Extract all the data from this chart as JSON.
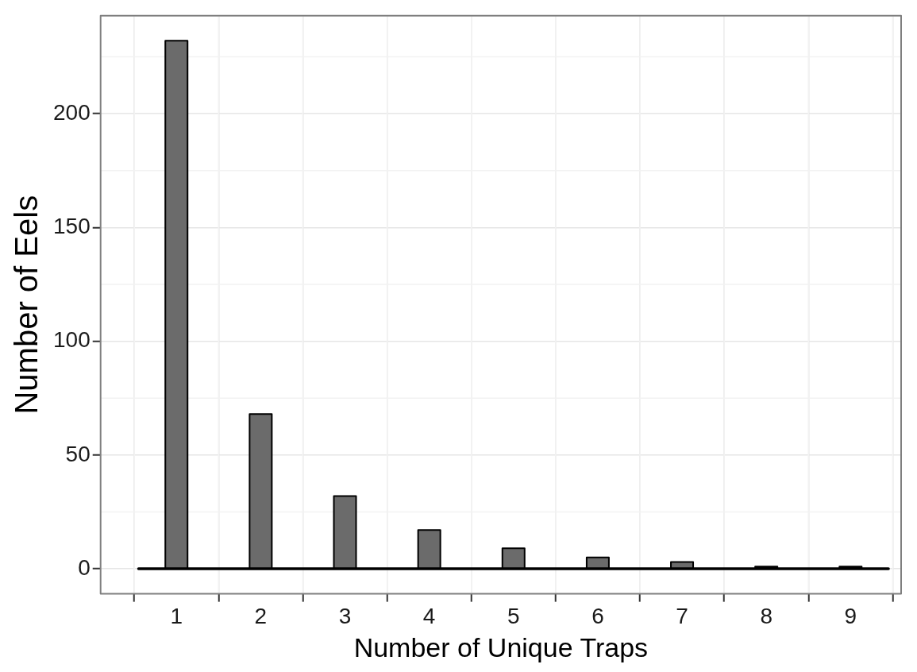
{
  "chart_data": {
    "type": "bar",
    "xlabel": "Number of Unique Traps",
    "ylabel": "Number of Eels",
    "x": [
      1,
      2,
      3,
      4,
      5,
      6,
      7,
      8,
      9
    ],
    "values": [
      232,
      68,
      32,
      17,
      9,
      5,
      3,
      1,
      1
    ],
    "color": "#6b6b6b",
    "xlim": [
      0.1,
      9.6
    ],
    "xticks": [
      1,
      2,
      3,
      4,
      5,
      6,
      7,
      8,
      9
    ],
    "ylim": [
      -11,
      243
    ],
    "yticks": [
      0,
      50,
      100,
      150,
      200
    ],
    "ref_lines": [
      {
        "axis": "y",
        "value": 0,
        "color": "#000000"
      }
    ],
    "grid": true
  }
}
